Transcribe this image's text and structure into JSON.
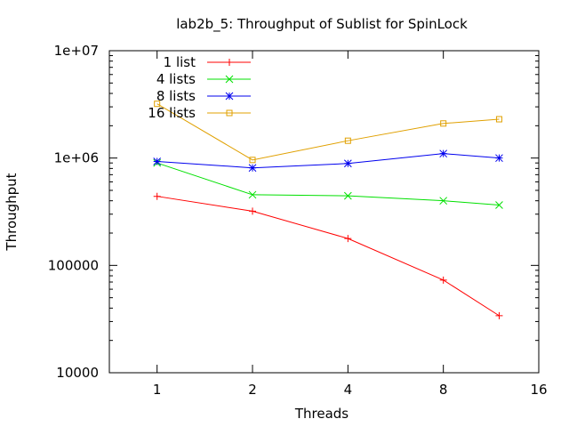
{
  "chart_data": {
    "type": "line",
    "title": "lab2b_5: Throughput of Sublist for SpinLock",
    "xlabel": "Threads",
    "ylabel": "Throughput",
    "x_scale": "log2",
    "y_scale": "log10",
    "xlim": [
      0.707,
      16
    ],
    "ylim": [
      10000,
      10000000
    ],
    "x_ticks": [
      {
        "value": 1,
        "label": "1"
      },
      {
        "value": 2,
        "label": "2"
      },
      {
        "value": 4,
        "label": "4"
      },
      {
        "value": 8,
        "label": "8"
      },
      {
        "value": 16,
        "label": "16"
      }
    ],
    "y_ticks": [
      {
        "value": 10000,
        "label": "10000"
      },
      {
        "value": 100000,
        "label": "100000"
      },
      {
        "value": 1000000,
        "label": "1e+06"
      },
      {
        "value": 10000000,
        "label": "1e+07"
      }
    ],
    "grid": false,
    "legend_position": "top-left",
    "x": [
      1,
      2,
      4,
      8,
      12
    ],
    "series": [
      {
        "name": "1 list",
        "color": "#ff0000",
        "marker": "plus",
        "values": [
          440000,
          320000,
          178000,
          73000,
          34000
        ]
      },
      {
        "name": "4 lists",
        "color": "#00e000",
        "marker": "cross",
        "values": [
          900000,
          455000,
          445000,
          400000,
          365000
        ]
      },
      {
        "name": "8 lists",
        "color": "#0000ee",
        "marker": "star",
        "values": [
          930000,
          810000,
          890000,
          1100000,
          1000000
        ]
      },
      {
        "name": "16 lists",
        "color": "#e0a000",
        "marker": "square",
        "values": [
          3200000,
          960000,
          1450000,
          2100000,
          2300000
        ]
      }
    ]
  }
}
